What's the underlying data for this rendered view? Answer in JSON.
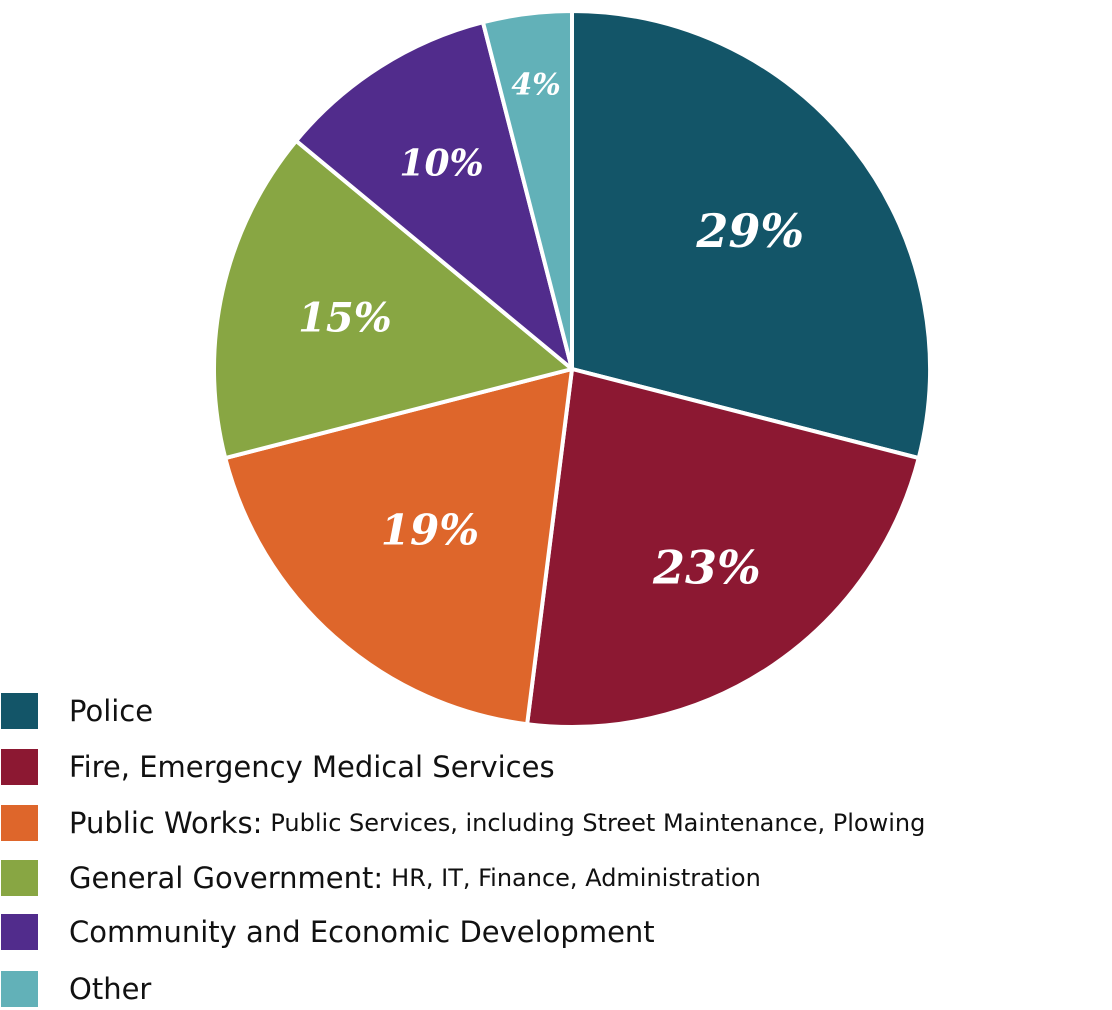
{
  "chart_data": {
    "type": "pie",
    "title": "",
    "start_angle_deg": 0,
    "direction": "clockwise",
    "legend_position": "bottom-left",
    "slices": [
      {
        "label": "Police",
        "detail": "",
        "value": 29,
        "display": "29%",
        "color": "#135568"
      },
      {
        "label": "Fire, Emergency Medical Services",
        "detail": "",
        "value": 23,
        "display": "23%",
        "color": "#8c1832"
      },
      {
        "label": "Public Works:",
        "detail": "Public Services, including Street Maintenance, Plowing",
        "value": 19,
        "display": "19%",
        "color": "#de662b"
      },
      {
        "label": "General Government:",
        "detail": "HR, IT, Finance, Administration",
        "value": 15,
        "display": "15%",
        "color": "#88a643"
      },
      {
        "label": "Community and Economic Development",
        "detail": "",
        "value": 10,
        "display": "10%",
        "color": "#512c8c"
      },
      {
        "label": "Other",
        "detail": "",
        "value": 4,
        "display": "4%",
        "color": "#62b1b8"
      }
    ]
  }
}
